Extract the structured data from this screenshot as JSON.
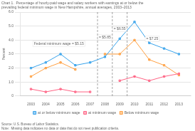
{
  "chart_data": {
    "type": "line",
    "title": [
      "Chart 1.  Percentage of hourly-paid wage and salary workers with earnings at or below the",
      "prevailing federal minimum wage in New Hampshire, annual averages, 2003–2013"
    ],
    "y_label": "Percent",
    "x": [
      2003,
      2004,
      2005,
      2006,
      2007,
      2008,
      2009,
      2010,
      2011,
      2012,
      2013
    ],
    "series": [
      {
        "name": "at or below minimum wage",
        "marker": "square",
        "values": [
          2.0,
          2.4,
          3.0,
          2.2,
          2.4,
          2.8,
          4.1,
          5.3,
          3.8,
          3.4,
          3.0
        ]
      },
      {
        "name": "at minimum wage",
        "marker": "square",
        "values": [
          0.5,
          0.3,
          0.5,
          0.3,
          0.3,
          null,
          1.1,
          1.4,
          1.1,
          1.4,
          1.6
        ]
      },
      {
        "name": "Below minimum wage",
        "marker": "square",
        "values": [
          1.4,
          2.0,
          2.4,
          1.9,
          null,
          3.0,
          3.0,
          4.0,
          2.6,
          2.2,
          1.5
        ]
      }
    ],
    "vlines": [
      2007.5,
      2008.5,
      2009.5
    ],
    "annotations": [
      {
        "text": "= $5.85",
        "x": 2008.0,
        "y": 4.0
      },
      {
        "text": "= $6.55",
        "x": 2009.0,
        "y": 4.6
      },
      {
        "text": "= $7.25",
        "x": 2011.2,
        "y": 3.9
      },
      {
        "text": "Federal minimum wage = $5.15",
        "x": 2003.2,
        "y": 3.55
      }
    ],
    "xlim": [
      2002.3,
      2013.8
    ],
    "xticks": [
      2003,
      2004,
      2005,
      2006,
      2007,
      2008,
      2009,
      2010,
      2011,
      2012,
      2013
    ],
    "ylim": [
      0,
      6.0
    ],
    "yticks": [
      0,
      {
        "value": 1.0,
        "label": "1.0"
      },
      {
        "value": 2.0,
        "label": "2.0"
      },
      {
        "value": 3.0,
        "label": "3.0"
      },
      {
        "value": 4.0,
        "label": "4.0"
      },
      {
        "value": 5.0,
        "label": "5.0"
      },
      {
        "value": 6.0,
        "label": "6.0"
      }
    ],
    "grid": "y",
    "legend": "bottom",
    "source": "Source: U.S. Bureau of Labor Statistics.",
    "note": "Note:  Missing data indicates no data or data that do not meet publication criteria."
  }
}
